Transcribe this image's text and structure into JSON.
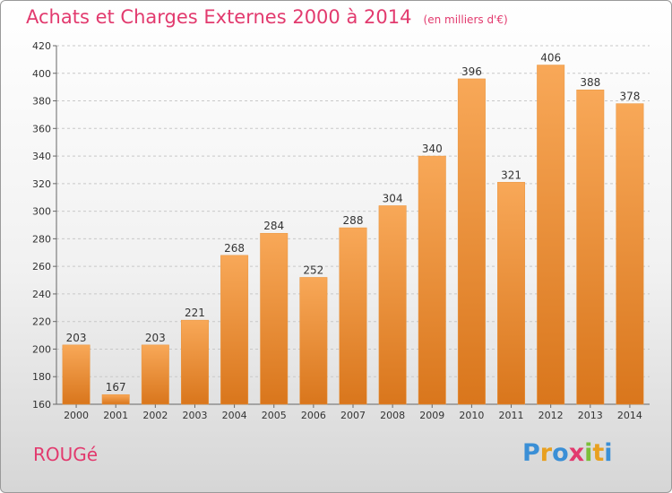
{
  "title": "Achats et Charges Externes 2000 à 2014",
  "unit_label": "(en milliers d'€)",
  "commune": "ROUGé",
  "logo": {
    "letters": [
      "P",
      "r",
      "o",
      "x",
      "i",
      "t",
      "i"
    ],
    "colors": [
      "#3a8fd6",
      "#e8a020",
      "#3a8fd6",
      "#e23a6e",
      "#7cbf3a",
      "#e8a020",
      "#3a8fd6"
    ]
  },
  "colors": {
    "bar_light": "#f7a552",
    "bar_dark": "#e07b1f",
    "grid": "#c8c8c8",
    "text": "#333333",
    "accent": "#e23a6e"
  },
  "chart_data": {
    "type": "bar",
    "categories": [
      "2000",
      "2001",
      "2002",
      "2003",
      "2004",
      "2005",
      "2006",
      "2007",
      "2008",
      "2009",
      "2010",
      "2011",
      "2012",
      "2013",
      "2014"
    ],
    "values": [
      203,
      167,
      203,
      221,
      268,
      284,
      252,
      288,
      304,
      340,
      396,
      321,
      406,
      388,
      378
    ],
    "ylim": [
      160,
      420
    ],
    "yticks": [
      160,
      180,
      200,
      220,
      240,
      260,
      280,
      300,
      320,
      340,
      360,
      380,
      400,
      420
    ],
    "grid": true,
    "legend": "none"
  }
}
